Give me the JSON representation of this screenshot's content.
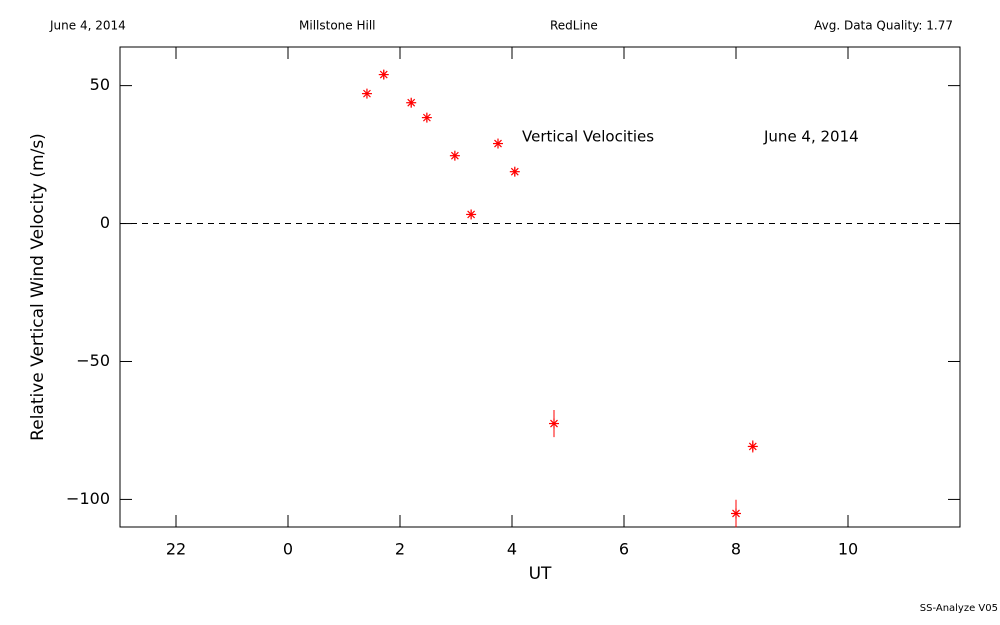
{
  "chart_data": {
    "type": "scatter",
    "header": [
      "June 4, 2014",
      "Millstone Hill",
      "RedLine",
      "Avg. Data Quality: 1.77"
    ],
    "annotations": [
      "Vertical Velocities",
      "June 4, 2014"
    ],
    "footer": "SS-Analyze V05",
    "x_label": "UT",
    "y_label": "Relative Vertical Wind Velocity (m/s)",
    "xlim": [
      -3,
      12
    ],
    "xticks": [
      {
        "value": -2,
        "label": "22"
      },
      0,
      2,
      4,
      6,
      8,
      10
    ],
    "ylim": [
      -110,
      64
    ],
    "yticks": [
      {
        "value": -100,
        "label": "−100"
      },
      {
        "value": -50,
        "label": "−50"
      },
      0,
      50
    ],
    "reference_line": 0,
    "series": [
      {
        "color": "#ff0000",
        "x": [
          1.41,
          1.71,
          2.2,
          2.48,
          2.98,
          3.27,
          3.75,
          4.05,
          4.75,
          8.0,
          8.3
        ],
        "values": [
          47.1,
          54.0,
          43.8,
          38.4,
          24.6,
          3.3,
          29.0,
          18.8,
          -72.5,
          -105.1,
          -80.8
        ],
        "errors": [
          1.5,
          1.5,
          1.5,
          1.5,
          1.5,
          1.5,
          1.5,
          1.5,
          4.9,
          5.0,
          2.2
        ]
      }
    ]
  }
}
